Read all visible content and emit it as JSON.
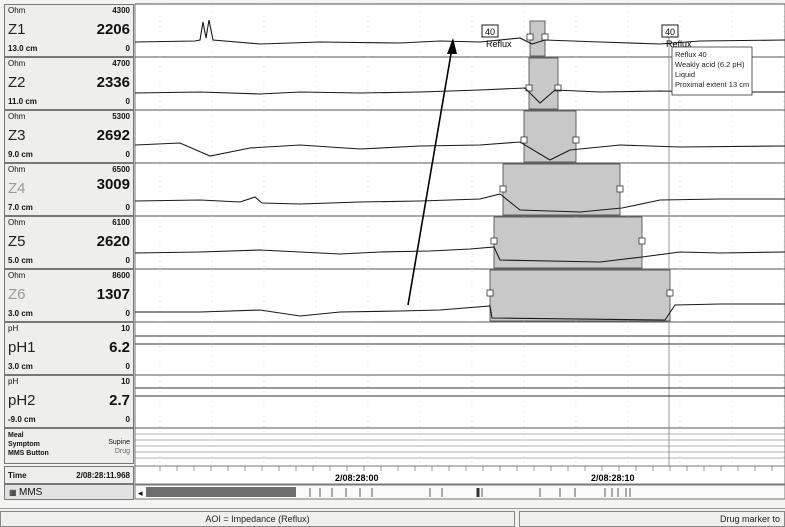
{
  "channels": [
    {
      "unit": "Ohm",
      "max": "4300",
      "name": "Z1",
      "value": "2206",
      "position": "13.0 cm",
      "min": "0"
    },
    {
      "unit": "Ohm",
      "max": "4700",
      "name": "Z2",
      "value": "2336",
      "position": "11.0 cm",
      "min": "0"
    },
    {
      "unit": "Ohm",
      "max": "5300",
      "name": "Z3",
      "value": "2692",
      "position": "9.0 cm",
      "min": "0"
    },
    {
      "unit": "Ohm",
      "max": "6500",
      "name": "Z4",
      "value": "3009",
      "position": "7.0 cm",
      "min": "0"
    },
    {
      "unit": "Ohm",
      "max": "6100",
      "name": "Z5",
      "value": "2620",
      "position": "5.0 cm",
      "min": "0"
    },
    {
      "unit": "Ohm",
      "max": "8600",
      "name": "Z6",
      "value": "1307",
      "position": "3.0 cm",
      "min": "0"
    },
    {
      "unit": "pH",
      "max": "10",
      "name": "pH1",
      "value": "6.2",
      "position": "3.0 cm",
      "min": "0"
    },
    {
      "unit": "pH",
      "max": "10",
      "name": "pH2",
      "value": "2.7",
      "position": "-9.0 cm",
      "min": "0"
    }
  ],
  "events": {
    "meal": "Meal",
    "supine": "Supine",
    "symptom": "Symptom",
    "drug": "Drug",
    "mms_button": "MMS Button"
  },
  "time": {
    "label": "Time",
    "value": "2/08:28:11.968"
  },
  "mms": {
    "label": "MMS"
  },
  "timeline": {
    "tick1": "2/08:28:00",
    "tick2": "2/08:28:10"
  },
  "markers": [
    {
      "number": "40",
      "label": "Reflux"
    },
    {
      "number": "40",
      "label": "Reflux"
    }
  ],
  "tooltip": {
    "line1": "Reflux 40",
    "line2": "Weakly acid (6.2 pH)",
    "line3": "Liquid",
    "line4": "Proximal extent 13 cm"
  },
  "status": {
    "left": "AOI = Impedance (Reflux)",
    "right": "Drug marker to"
  },
  "colors": {
    "trace": "#1a1a1a",
    "reflux_fill": "#c8c8c8",
    "panel": "#eeeeec"
  }
}
